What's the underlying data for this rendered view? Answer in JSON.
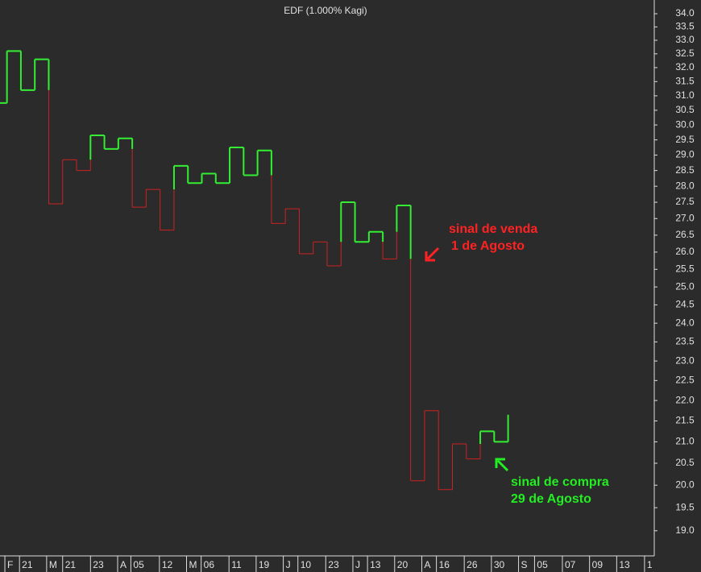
{
  "chart_data": {
    "type": "kagi",
    "title": "EDF (1.000% Kagi)",
    "log_scale": true,
    "up_color": "#33ee33",
    "down_color": "#cc2222",
    "x": [
      0,
      0.5,
      1.5,
      2.5,
      3.5,
      4.5,
      5.5,
      6.5,
      7.5,
      8.5,
      9.5,
      10.5,
      11.5,
      12.5,
      13.5,
      14.5,
      15.5,
      16.5,
      17.5,
      18.5,
      19.5,
      20.5,
      21.5,
      22.5,
      23.5,
      24.5,
      25.5,
      26.5,
      27.5,
      28.5,
      29.5,
      30.5,
      31.5,
      32.5,
      33.5,
      34.5,
      35.5,
      36.5
    ],
    "values": [
      30.75,
      32.6,
      31.2,
      32.3,
      27.45,
      28.85,
      28.5,
      29.65,
      29.2,
      29.55,
      27.35,
      27.9,
      26.65,
      28.65,
      28.1,
      28.4,
      28.1,
      29.25,
      28.35,
      29.15,
      26.85,
      27.3,
      25.95,
      26.3,
      25.6,
      27.5,
      26.3,
      26.6,
      25.8,
      27.4,
      20.1,
      21.75,
      19.9,
      20.95,
      20.6,
      21.25,
      21.0,
      21.65
    ],
    "xlim": [
      0,
      47
    ],
    "xticks": [
      {
        "value": 0.35,
        "label": "F"
      },
      {
        "value": 1.4,
        "label": "21"
      },
      {
        "value": 3.35,
        "label": "M"
      },
      {
        "value": 4.5,
        "label": "21"
      },
      {
        "value": 6.5,
        "label": "23"
      },
      {
        "value": 8.45,
        "label": "A"
      },
      {
        "value": 9.4,
        "label": "05"
      },
      {
        "value": 11.45,
        "label": "12"
      },
      {
        "value": 13.4,
        "label": "M"
      },
      {
        "value": 14.45,
        "label": "06"
      },
      {
        "value": 16.45,
        "label": "11"
      },
      {
        "value": 18.4,
        "label": "19"
      },
      {
        "value": 20.35,
        "label": "J"
      },
      {
        "value": 21.4,
        "label": "10"
      },
      {
        "value": 23.4,
        "label": "23"
      },
      {
        "value": 25.35,
        "label": "J"
      },
      {
        "value": 26.4,
        "label": "13"
      },
      {
        "value": 28.35,
        "label": "20"
      },
      {
        "value": 30.3,
        "label": "A"
      },
      {
        "value": 31.35,
        "label": "16"
      },
      {
        "value": 33.35,
        "label": "26"
      },
      {
        "value": 35.3,
        "label": "30"
      },
      {
        "value": 37.25,
        "label": "S"
      },
      {
        "value": 38.4,
        "label": "05"
      },
      {
        "value": 40.4,
        "label": "07"
      },
      {
        "value": 42.35,
        "label": "09"
      },
      {
        "value": 44.3,
        "label": "13"
      },
      {
        "value": 46.3,
        "label": "1"
      }
    ],
    "ylim": [
      18.47,
      34.53
    ],
    "yticks": [
      {
        "value": 19,
        "label": "19.0"
      },
      19.5,
      {
        "value": 20,
        "label": "20.0"
      },
      20.5,
      {
        "value": 21,
        "label": "21.0"
      },
      21.5,
      {
        "value": 22,
        "label": "22.0"
      },
      22.5,
      {
        "value": 23,
        "label": "23.0"
      },
      23.5,
      {
        "value": 24,
        "label": "24.0"
      },
      24.5,
      {
        "value": 25,
        "label": "25.0"
      },
      25.5,
      {
        "value": 26,
        "label": "26.0"
      },
      26.5,
      {
        "value": 27,
        "label": "27.0"
      },
      27.5,
      {
        "value": 28,
        "label": "28.0"
      },
      28.5,
      {
        "value": 29,
        "label": "29.0"
      },
      29.5,
      {
        "value": 30,
        "label": "30.0"
      },
      30.5,
      {
        "value": 31,
        "label": "31.0"
      },
      31.5,
      {
        "value": 32,
        "label": "32.0"
      },
      32.5,
      {
        "value": 33,
        "label": "33.0"
      },
      33.5,
      {
        "value": 34,
        "label": "34.0"
      }
    ],
    "annotations": [
      {
        "lines": [
          "sinal de venda",
          "1 de Agosto"
        ],
        "color": "#ff2222"
      },
      {
        "lines": [
          "sinal de compra",
          "29 de Agosto"
        ],
        "color": "#22ee22"
      }
    ]
  }
}
